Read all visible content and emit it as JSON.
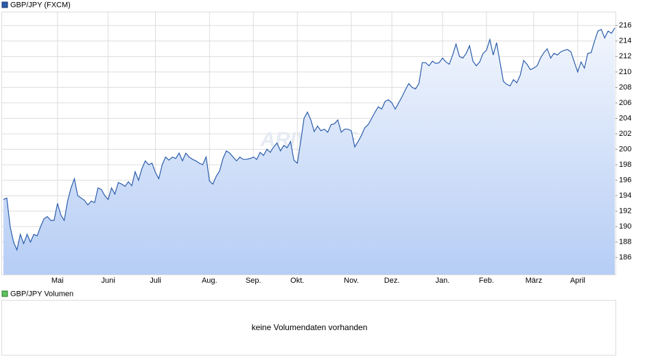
{
  "chart_data": {
    "type": "area",
    "legend": "GBP/JPY (FXCM)",
    "watermark": "ARIVA.DE",
    "series": [
      {
        "name": "GBP/JPY (FXCM)",
        "color": "#2a5caa",
        "values": [
          193.5,
          193.7,
          190,
          188,
          187,
          189,
          187.8,
          189,
          188,
          189,
          188.8,
          190,
          191,
          191.3,
          190.8,
          190.8,
          193,
          191.5,
          190.8,
          193.3,
          195,
          196.2,
          194,
          193.7,
          193.4,
          192.8,
          193.3,
          193.1,
          195,
          194.8,
          194,
          193.5,
          195,
          194.2,
          195.7,
          195.5,
          195.2,
          195.8,
          195.3,
          197.1,
          196,
          197.5,
          198.5,
          198,
          198.2,
          197,
          196.2,
          198,
          199,
          198.6,
          199,
          198.8,
          199.5,
          198.5,
          199.5,
          199,
          198.7,
          198.5,
          198.2,
          198,
          199,
          195.9,
          195.5,
          196.5,
          197.2,
          198.8,
          199.8,
          199.5,
          199,
          198.5,
          199,
          198.7,
          198.7,
          198.8,
          199,
          198.7,
          199.6,
          199.2,
          200,
          199.6,
          200.3,
          200.8,
          199.8,
          200.5,
          200.2,
          201,
          198.6,
          198.2,
          201,
          204,
          204.8,
          203.8,
          202.3,
          203,
          202.4,
          202.6,
          202.2,
          203.2,
          203.3,
          203.8,
          202.2,
          202.6,
          202.6,
          202.4,
          200.3,
          201,
          201.8,
          202.8,
          203.2,
          204,
          204.8,
          205.5,
          205.2,
          206.2,
          206.4,
          206,
          205.2,
          206,
          206.8,
          207.7,
          208.5,
          208,
          207.8,
          208.5,
          211.2,
          211.2,
          210.8,
          211.4,
          211.1,
          211.2,
          211.8,
          211.3,
          211,
          212.2,
          213.6,
          212,
          211.8,
          212.4,
          213.4,
          211.4,
          210.8,
          211.3,
          212.4,
          212.8,
          214.2,
          212.2,
          213.8,
          211.3,
          208.8,
          208.4,
          208.2,
          209,
          208.6,
          209.6,
          211.5,
          211,
          210.3,
          210.5,
          210.8,
          211.8,
          212.5,
          213,
          211.8,
          212.4,
          212.2,
          212.6,
          212.8,
          212.9,
          212.6,
          211.3,
          210,
          211.3,
          210.5,
          212.4,
          212.5,
          214,
          215.3,
          215.5,
          214.4,
          215.3,
          215,
          215.7
        ]
      }
    ],
    "xlim": [
      0,
      181
    ],
    "xticks": [
      {
        "value": 16,
        "label": "Mai"
      },
      {
        "value": 31,
        "label": "Juni"
      },
      {
        "value": 45,
        "label": "Juli"
      },
      {
        "value": 61,
        "label": "Aug."
      },
      {
        "value": 74,
        "label": "Sep."
      },
      {
        "value": 87,
        "label": "Okt."
      },
      {
        "value": 103,
        "label": "Nov."
      },
      {
        "value": 115,
        "label": "Dez."
      },
      {
        "value": 130,
        "label": "Jan."
      },
      {
        "value": 143,
        "label": "Feb."
      },
      {
        "value": 157,
        "label": "März"
      },
      {
        "value": 170,
        "label": "April"
      }
    ],
    "ylim": [
      183.8,
      217.8
    ],
    "yticks": [
      186,
      188,
      190,
      192,
      194,
      196,
      198,
      200,
      202,
      204,
      206,
      208,
      210,
      212,
      214,
      216
    ],
    "grid": true,
    "volume_legend": "GBP/JPY Volumen",
    "volume_message": "keine Volumendaten vorhanden"
  }
}
